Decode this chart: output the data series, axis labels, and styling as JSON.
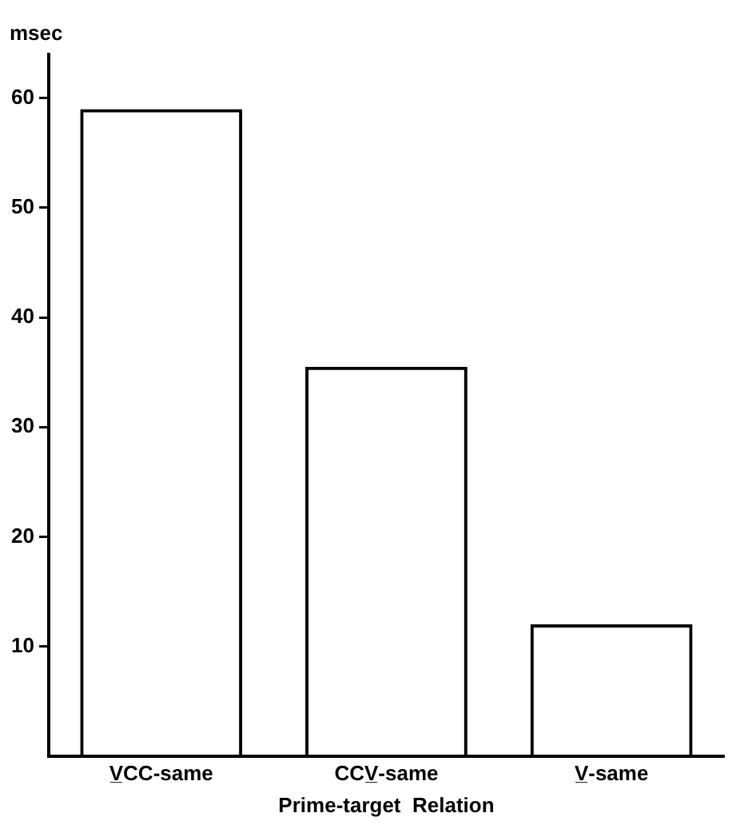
{
  "chart_data": {
    "type": "bar",
    "xlabel": "Prime-target  Relation",
    "ylabel": "msec",
    "categories": [
      "V̲CC-same",
      "CCV̲-same",
      "V̲-same"
    ],
    "values": [
      59,
      35.5,
      12
    ],
    "color": "#000000",
    "ylim": [
      0,
      64
    ],
    "yticks": [
      10,
      20,
      30,
      40,
      50,
      60
    ],
    "grid": false,
    "legend": false
  }
}
